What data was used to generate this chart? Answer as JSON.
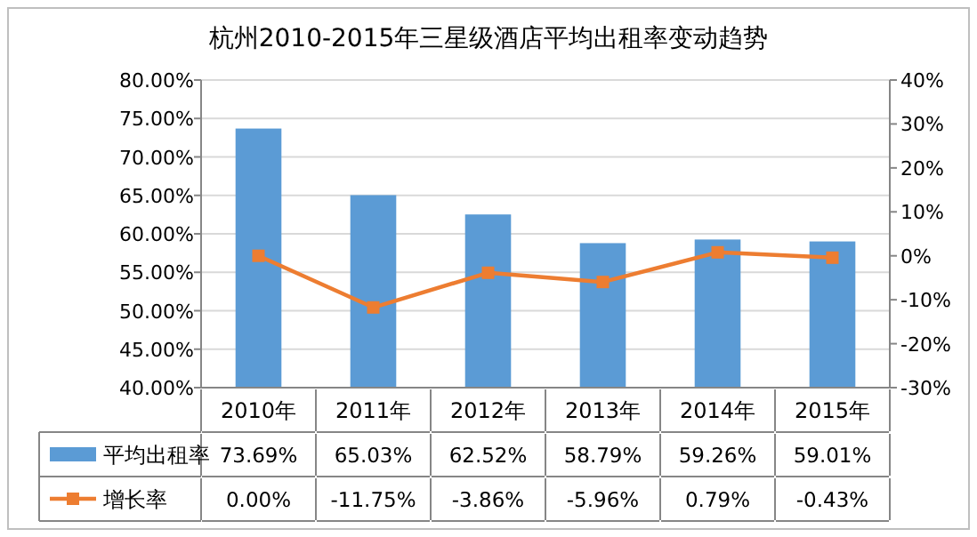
{
  "chart_data": {
    "type": "bar",
    "title": "杭州2010-2015年三星级酒店平均出租率变动趋势",
    "categories": [
      "2010年",
      "2011年",
      "2012年",
      "2013年",
      "2014年",
      "2015年"
    ],
    "series": [
      {
        "name": "平均出租率",
        "color": "#5b9bd5",
        "values": [
          73.69,
          65.03,
          62.52,
          58.79,
          59.26,
          59.01
        ],
        "value_labels": [
          "73.69%",
          "65.03%",
          "62.52%",
          "58.79%",
          "59.26%",
          "59.01%"
        ]
      },
      {
        "name": "增长率",
        "type": "line",
        "axis": "y2",
        "color": "#ed7d31",
        "marker": "square",
        "values": [
          0.0,
          -11.75,
          -3.86,
          -5.96,
          0.79,
          -0.43
        ],
        "value_labels": [
          "0.00%",
          "-11.75%",
          "-3.86%",
          "-5.96%",
          "0.79%",
          "-0.43%"
        ]
      }
    ],
    "ylim": [
      40,
      80
    ],
    "yticks": [
      {
        "value": 40,
        "label": "40.00%"
      },
      {
        "value": 45,
        "label": "45.00%"
      },
      {
        "value": 50,
        "label": "50.00%"
      },
      {
        "value": 55,
        "label": "55.00%"
      },
      {
        "value": 60,
        "label": "60.00%"
      },
      {
        "value": 65,
        "label": "65.00%"
      },
      {
        "value": 70,
        "label": "70.00%"
      },
      {
        "value": 75,
        "label": "75.00%"
      },
      {
        "value": 80,
        "label": "80.00%"
      }
    ],
    "y2lim": [
      -30,
      40
    ],
    "y2ticks": [
      {
        "value": -30,
        "label": "-30%"
      },
      {
        "value": -20,
        "label": "-20%"
      },
      {
        "value": -10,
        "label": "-10%"
      },
      {
        "value": 0,
        "label": "0%"
      },
      {
        "value": 10,
        "label": "10%"
      },
      {
        "value": 20,
        "label": "20%"
      },
      {
        "value": 30,
        "label": "30%"
      },
      {
        "value": 40,
        "label": "40%"
      }
    ],
    "grid": "y",
    "legend": "bottom"
  }
}
